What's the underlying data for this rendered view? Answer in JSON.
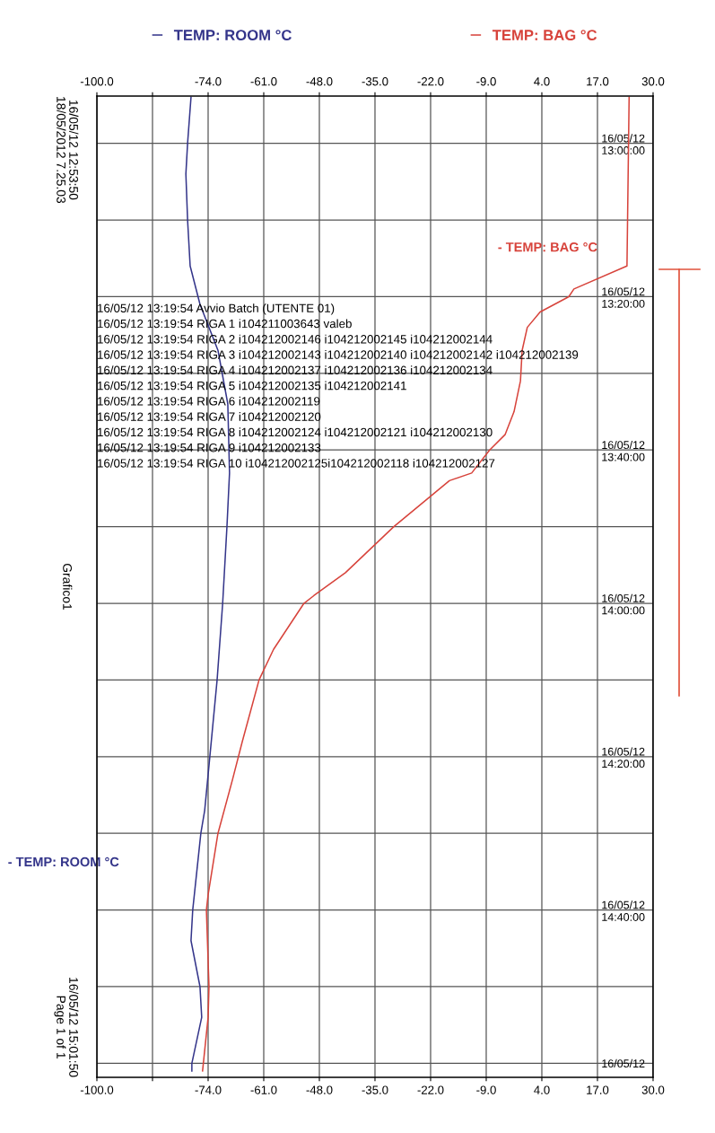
{
  "chart_data": {
    "type": "line",
    "orientation": "horizontal",
    "series": [
      {
        "name": "TEMP: ROOM °C",
        "color": "#34358a",
        "x": [
          "2012-05-16T12:54",
          "2012-05-16T13:00",
          "2012-05-16T13:04",
          "2012-05-16T13:10",
          "2012-05-16T13:16",
          "2012-05-16T13:21",
          "2012-05-16T13:27",
          "2012-05-16T13:34",
          "2012-05-16T13:43",
          "2012-05-16T13:50",
          "2012-05-16T14:00",
          "2012-05-16T14:10",
          "2012-05-16T14:20",
          "2012-05-16T14:27",
          "2012-05-16T14:30",
          "2012-05-16T14:40",
          "2012-05-16T14:44",
          "2012-05-16T14:50",
          "2012-05-16T14:54",
          "2012-05-16T15:00",
          "2012-05-16T15:01"
        ],
        "values": [
          -78.0,
          -78.8,
          -79.2,
          -78.8,
          -78.2,
          -75.9,
          -71.7,
          -69.4,
          -69.0,
          -69.6,
          -70.6,
          -71.9,
          -73.6,
          -74.8,
          -75.7,
          -77.6,
          -78.0,
          -75.9,
          -75.5,
          -77.8,
          -77.8
        ]
      },
      {
        "name": "TEMP: BAG °C",
        "color": "#d7433b",
        "x": [
          "2012-05-16T12:54",
          "2012-05-16T13:16",
          "2012-05-16T13:19",
          "2012-05-16T13:20",
          "2012-05-16T13:22",
          "2012-05-16T13:24",
          "2012-05-16T13:27",
          "2012-05-16T13:31",
          "2012-05-16T13:35",
          "2012-05-16T13:38",
          "2012-05-16T13:40",
          "2012-05-16T13:43",
          "2012-05-16T13:44",
          "2012-05-16T13:50",
          "2012-05-16T13:56",
          "2012-05-16T13:59",
          "2012-05-16T14:00",
          "2012-05-16T14:06",
          "2012-05-16T14:10",
          "2012-05-16T14:18",
          "2012-05-16T14:23",
          "2012-05-16T14:30",
          "2012-05-16T14:38",
          "2012-05-16T14:40",
          "2012-05-16T14:50",
          "2012-05-16T14:54",
          "2012-05-16T15:01"
        ],
        "values": [
          24.4,
          23.9,
          11.5,
          10.3,
          3.6,
          0.6,
          -0.6,
          -1.0,
          -2.5,
          -4.6,
          -8.2,
          -12.4,
          -17.6,
          -30.6,
          -41.9,
          -49.3,
          -51.6,
          -58.7,
          -62.1,
          -66.0,
          -68.3,
          -71.7,
          -74.0,
          -74.4,
          -73.8,
          -74.0,
          -75.3
        ]
      }
    ],
    "xlim": [
      -100,
      30
    ],
    "xticks": [
      {
        "value": -100,
        "label": "-100.0"
      },
      {
        "value": -87,
        "label": null
      },
      {
        "value": -74,
        "label": "-74.0"
      },
      {
        "value": -61,
        "label": "-61.0"
      },
      {
        "value": -48,
        "label": "-48.0"
      },
      {
        "value": -35,
        "label": "-35.0"
      },
      {
        "value": -22,
        "label": "-22.0"
      },
      {
        "value": -9,
        "label": "-9.0"
      },
      {
        "value": 4,
        "label": "4.0"
      },
      {
        "value": 17,
        "label": "17.0"
      },
      {
        "value": 30,
        "label": "30.0"
      }
    ],
    "x2lim": [
      -100,
      30
    ],
    "x2ticks": [
      {
        "value": -100,
        "label": "-100.0"
      },
      {
        "value": -87,
        "label": null
      },
      {
        "value": -74,
        "label": "-74.0"
      },
      {
        "value": -61,
        "label": "-61.0"
      },
      {
        "value": -48,
        "label": "-48.0"
      },
      {
        "value": -35,
        "label": "-35.0"
      },
      {
        "value": -22,
        "label": "-22.0"
      },
      {
        "value": -9,
        "label": "-9.0"
      },
      {
        "value": 4,
        "label": "4.0"
      },
      {
        "value": 17,
        "label": "17.0"
      },
      {
        "value": 30,
        "label": "30.0"
      }
    ],
    "ylim": [
      "2012-05-16T15:01:50",
      "2012-05-16T12:53:50"
    ],
    "yticks": [
      {
        "value": "2012-05-16T13:00",
        "label": "16/05/12\n13:00:00"
      },
      {
        "value": "2012-05-16T13:10",
        "label": null
      },
      {
        "value": "2012-05-16T13:20",
        "label": "16/05/12\n13:20:00"
      },
      {
        "value": "2012-05-16T13:30",
        "label": null
      },
      {
        "value": "2012-05-16T13:40",
        "label": "16/05/12\n13:40:00"
      },
      {
        "value": "2012-05-16T13:50",
        "label": null
      },
      {
        "value": "2012-05-16T14:00",
        "label": "16/05/12\n14:00:00"
      },
      {
        "value": "2012-05-16T14:10",
        "label": null
      },
      {
        "value": "2012-05-16T14:20",
        "label": "16/05/12\n14:20:00"
      },
      {
        "value": "2012-05-16T14:30",
        "label": null
      },
      {
        "value": "2012-05-16T14:40",
        "label": "16/05/12\n14:40:00"
      },
      {
        "value": "2012-05-16T14:50",
        "label": null
      },
      {
        "value": "2012-05-16T15:00",
        "label": "16/05/12"
      }
    ],
    "grid": true,
    "legend": "top",
    "annotations": [
      "16/05/12 13:19:54 Avvio Batch (UTENTE 01)",
      "16/05/12 13:19:54 RIGA 1 i104211003643 valeb",
      "16/05/12 13:19:54 RIGA 2 i104212002146 i104212002145 i104212002144",
      "16/05/12 13:19:54 RIGA 3 i104212002143 i104212002140 i104212002142 i104212002139",
      "16/05/12 13:19:54 RIGA 4 i104212002137 i104212002136 i104212002134",
      "16/05/12 13:19:54 RIGA 5 i104212002135 i104212002141",
      "16/05/12 13:19:54 RIGA 6 i104212002119",
      "16/05/12 13:19:54 RIGA 7 i104212002120",
      "16/05/12 13:19:54 RIGA 8 i104212002124 i104212002121 i104212002130",
      "16/05/12 13:19:54 RIGA 9 i104212002133",
      "16/05/12 13:19:54 RIGA 10 i104212002125i104212002118 i104212002127",
      "- TEMP: BAG °C",
      "- TEMP: ROOM °C",
      "16/05/12 12:53:50\n18/05/2012 7.25.03",
      "Grafico1",
      "16/05/12 15:01:50\nPage 1 of 1"
    ]
  }
}
